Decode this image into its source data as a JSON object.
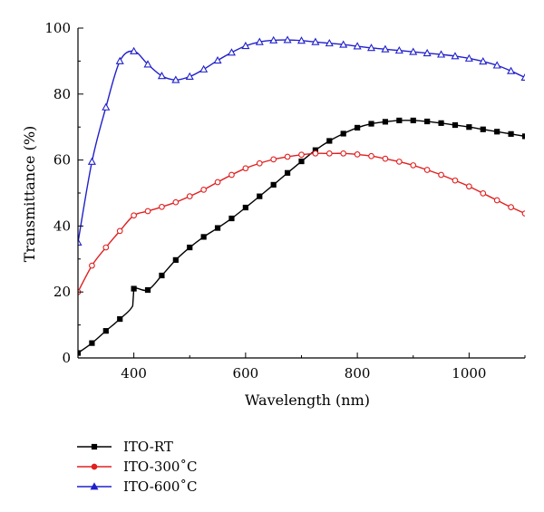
{
  "chart_data": {
    "type": "line",
    "title": "",
    "xlabel": "Wavelength (nm)",
    "ylabel": "Transmittance (%)",
    "xlim": [
      300,
      1100
    ],
    "ylim": [
      0,
      100
    ],
    "x_ticks": [
      "400",
      "600",
      "800",
      "1000"
    ],
    "y_ticks": [
      "0",
      "20",
      "40",
      "60",
      "80",
      "100"
    ],
    "grid": false,
    "legend_position": "below-left",
    "series": [
      {
        "name": "ITO-RT",
        "color": "#000000",
        "marker": "square",
        "filled": true,
        "x": [
          300,
          325,
          350,
          375,
          398,
          400,
          425,
          450,
          475,
          500,
          525,
          550,
          575,
          600,
          625,
          650,
          675,
          700,
          725,
          750,
          775,
          800,
          825,
          850,
          875,
          900,
          925,
          950,
          975,
          1000,
          1025,
          1050,
          1075,
          1100
        ],
        "y": [
          1.5,
          4.5,
          8.2,
          11.8,
          15.8,
          21.0,
          20.6,
          25.0,
          29.7,
          33.5,
          36.7,
          39.4,
          42.3,
          45.6,
          49.0,
          52.5,
          56.1,
          59.6,
          63.0,
          65.8,
          68.0,
          69.8,
          71.0,
          71.6,
          72.0,
          72.0,
          71.7,
          71.2,
          70.6,
          70.0,
          69.3,
          68.6,
          67.9,
          67.2
        ]
      },
      {
        "name": "ITO-300˚C",
        "color": "#e02020",
        "marker": "circle",
        "filled": false,
        "x": [
          300,
          325,
          350,
          375,
          400,
          425,
          450,
          475,
          500,
          525,
          550,
          575,
          600,
          625,
          650,
          675,
          700,
          725,
          750,
          775,
          800,
          825,
          850,
          875,
          900,
          925,
          950,
          975,
          1000,
          1025,
          1050,
          1075,
          1100
        ],
        "y": [
          20.0,
          28.0,
          33.5,
          38.5,
          43.2,
          44.5,
          45.8,
          47.2,
          49.0,
          51.0,
          53.3,
          55.5,
          57.5,
          59.0,
          60.2,
          61.0,
          61.6,
          62.0,
          62.0,
          62.0,
          61.7,
          61.2,
          60.4,
          59.5,
          58.4,
          57.0,
          55.5,
          53.8,
          52.0,
          49.9,
          47.8,
          45.7,
          43.8
        ]
      },
      {
        "name": "ITO-600˚C",
        "color": "#2020cc",
        "marker": "triangle",
        "filled": false,
        "x": [
          300,
          325,
          350,
          375,
          400,
          425,
          450,
          475,
          500,
          525,
          550,
          575,
          600,
          625,
          650,
          675,
          700,
          725,
          750,
          775,
          800,
          825,
          850,
          875,
          900,
          925,
          950,
          975,
          1000,
          1025,
          1050,
          1075,
          1100
        ],
        "y": [
          35.0,
          59.5,
          76.0,
          90.0,
          93.0,
          89.0,
          85.5,
          84.3,
          85.3,
          87.5,
          90.2,
          92.6,
          94.6,
          95.8,
          96.3,
          96.4,
          96.2,
          95.8,
          95.4,
          95.0,
          94.5,
          94.0,
          93.6,
          93.2,
          92.8,
          92.4,
          92.0,
          91.5,
          90.8,
          89.9,
          88.7,
          87.0,
          85.0
        ]
      }
    ]
  }
}
